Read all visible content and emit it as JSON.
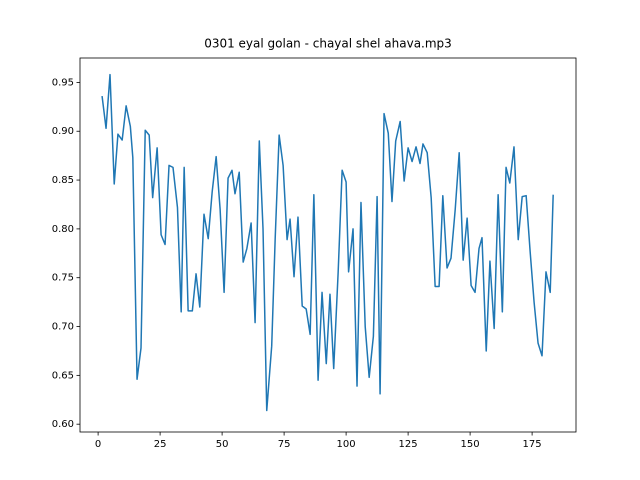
{
  "chart_data": {
    "type": "line",
    "title": "0301 eyal golan - chayal shel ahava.mp3",
    "x": [
      1.6,
      3.2,
      4.8,
      6.5,
      8,
      9.7,
      11.3,
      13,
      14,
      15.7,
      17.3,
      19,
      20.6,
      22,
      23.8,
      25.4,
      27,
      28.6,
      30.2,
      32,
      33.5,
      34.7,
      36.3,
      38,
      39.5,
      41,
      42.7,
      44.4,
      46,
      47.6,
      49.2,
      50.8,
      52.4,
      54,
      55.2,
      56.9,
      58.5,
      60,
      61.7,
      63.3,
      65,
      66.5,
      68,
      70,
      71.4,
      73,
      74.6,
      76.2,
      77.4,
      79,
      80.6,
      82.3,
      83.9,
      85.5,
      87,
      88.7,
      90.3,
      92,
      93.5,
      95,
      96.8,
      98.4,
      100,
      101,
      102.8,
      104.4,
      106,
      107.7,
      109.3,
      111,
      112.5,
      113.7,
      115.3,
      117,
      118.5,
      120,
      121.8,
      123.4,
      125,
      126.6,
      128.2,
      129.8,
      131,
      132.7,
      134.3,
      135.9,
      137.5,
      139,
      140.7,
      142.3,
      144,
      145.6,
      147.2,
      148.8,
      150.4,
      152,
      153.6,
      154.8,
      156.5,
      158,
      159.7,
      161.3,
      163,
      164.5,
      166,
      167.7,
      169.4,
      171,
      172.6,
      174.2,
      175.8,
      177.4,
      179,
      180.6,
      182.3,
      183.5
    ],
    "series": [
      {
        "color": "#1f77b4",
        "values": [
          0.936,
          0.903,
          0.958,
          0.846,
          0.897,
          0.891,
          0.926,
          0.905,
          0.873,
          0.646,
          0.678,
          0.901,
          0.896,
          0.832,
          0.883,
          0.794,
          0.784,
          0.865,
          0.863,
          0.822,
          0.715,
          0.863,
          0.716,
          0.716,
          0.754,
          0.72,
          0.815,
          0.79,
          0.838,
          0.874,
          0.82,
          0.735,
          0.852,
          0.86,
          0.836,
          0.858,
          0.766,
          0.78,
          0.806,
          0.704,
          0.89,
          0.8,
          0.614,
          0.68,
          0.79,
          0.896,
          0.865,
          0.789,
          0.81,
          0.751,
          0.812,
          0.721,
          0.718,
          0.692,
          0.835,
          0.645,
          0.735,
          0.662,
          0.733,
          0.657,
          0.756,
          0.86,
          0.848,
          0.756,
          0.8,
          0.639,
          0.827,
          0.7,
          0.648,
          0.69,
          0.833,
          0.631,
          0.918,
          0.898,
          0.828,
          0.89,
          0.91,
          0.849,
          0.883,
          0.869,
          0.884,
          0.867,
          0.887,
          0.878,
          0.832,
          0.741,
          0.741,
          0.834,
          0.76,
          0.77,
          0.82,
          0.878,
          0.768,
          0.811,
          0.742,
          0.735,
          0.78,
          0.791,
          0.675,
          0.767,
          0.698,
          0.835,
          0.715,
          0.863,
          0.847,
          0.884,
          0.789,
          0.833,
          0.834,
          0.777,
          0.725,
          0.683,
          0.67,
          0.756,
          0.735,
          0.835
        ]
      }
    ],
    "xlim": [
      -7.3,
      192.7
    ],
    "ylim": [
      0.592,
      0.975
    ],
    "xticks": [
      0,
      25,
      50,
      75,
      100,
      125,
      150,
      175
    ],
    "yticks": [
      {
        "value": 0.6,
        "label": "0.60"
      },
      0.65,
      {
        "value": 0.7,
        "label": "0.70"
      },
      0.75,
      {
        "value": 0.8,
        "label": "0.80"
      },
      0.85,
      {
        "value": 0.9,
        "label": "0.90"
      },
      0.95
    ]
  }
}
